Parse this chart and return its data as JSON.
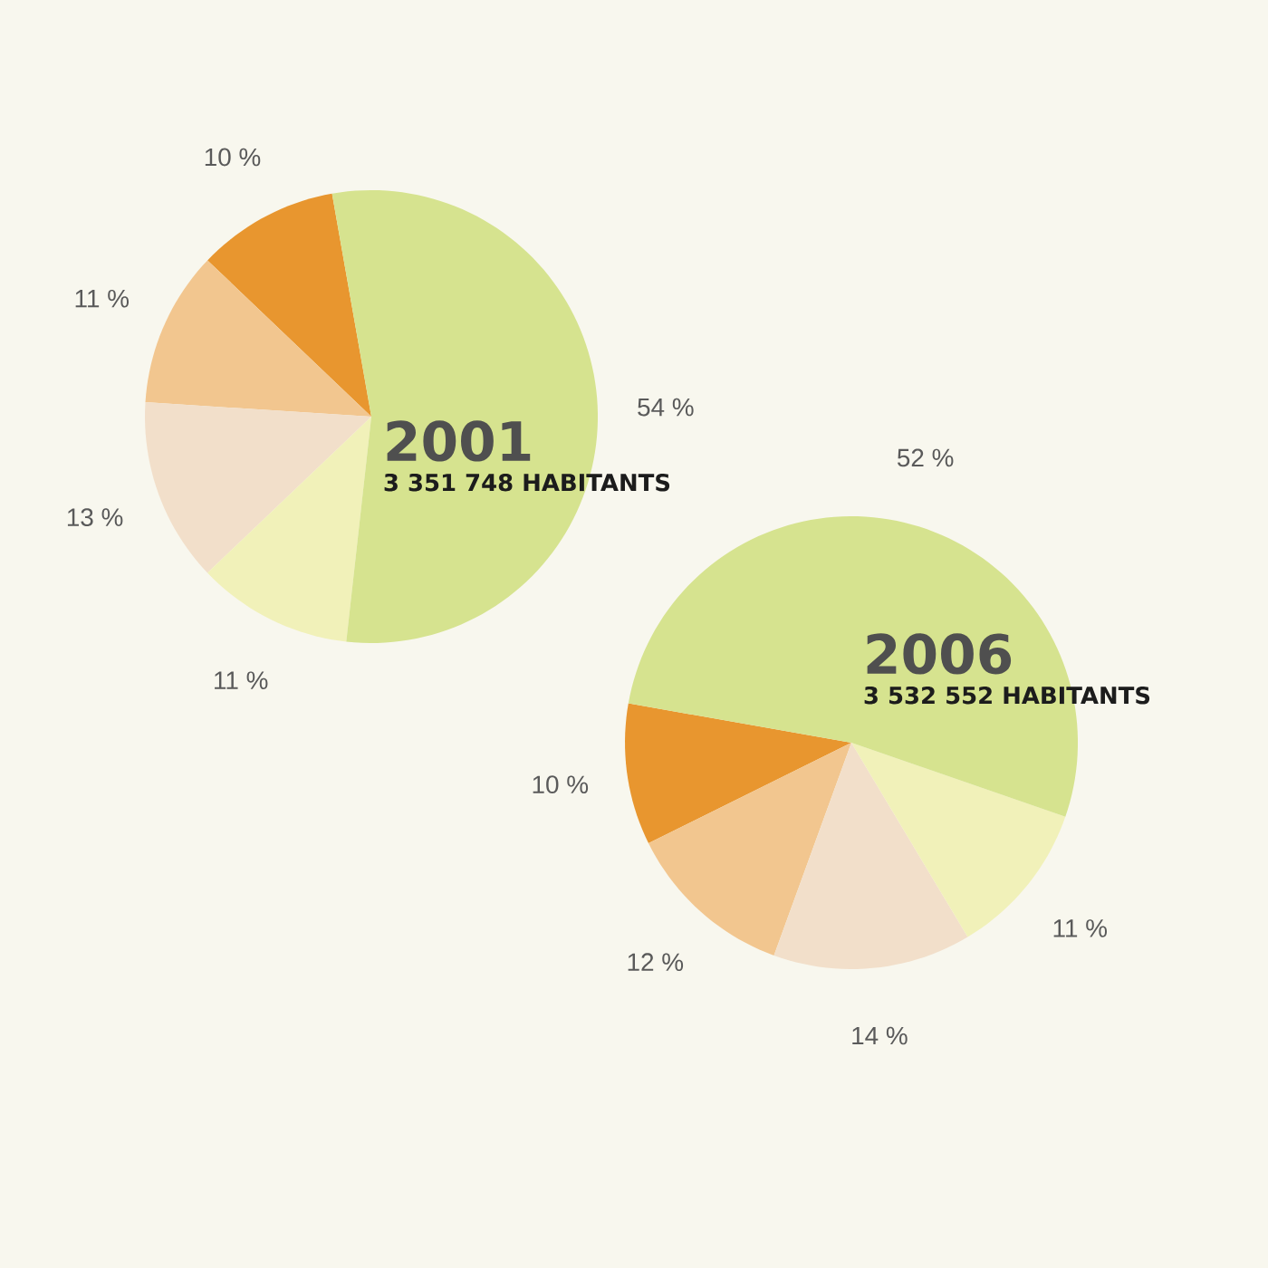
{
  "chart_data": [
    {
      "type": "pie",
      "title": "2001",
      "subtitle": "3 351 748 HABITANTS",
      "categories": [
        null,
        null,
        null,
        null,
        null
      ],
      "values": [
        10,
        11,
        13,
        11,
        54
      ],
      "colors": [
        "#e8962f",
        "#f2c68f",
        "#f2dfca",
        "#f1f1b9",
        "#d6e38f"
      ],
      "value_labels": [
        "10 %",
        "11 %",
        "13 %",
        "11 %",
        "54 %"
      ]
    },
    {
      "type": "pie",
      "title": "2006",
      "subtitle": "3 532 552 HABITANTS",
      "categories": [
        null,
        null,
        null,
        null,
        null
      ],
      "values": [
        10,
        12,
        14,
        11,
        52
      ],
      "colors": [
        "#e8962f",
        "#f2c68f",
        "#f2dfca",
        "#f1f1b9",
        "#d6e38f"
      ],
      "value_labels": [
        "10 %",
        "12 %",
        "14 %",
        "11 %",
        "52 %"
      ]
    }
  ]
}
